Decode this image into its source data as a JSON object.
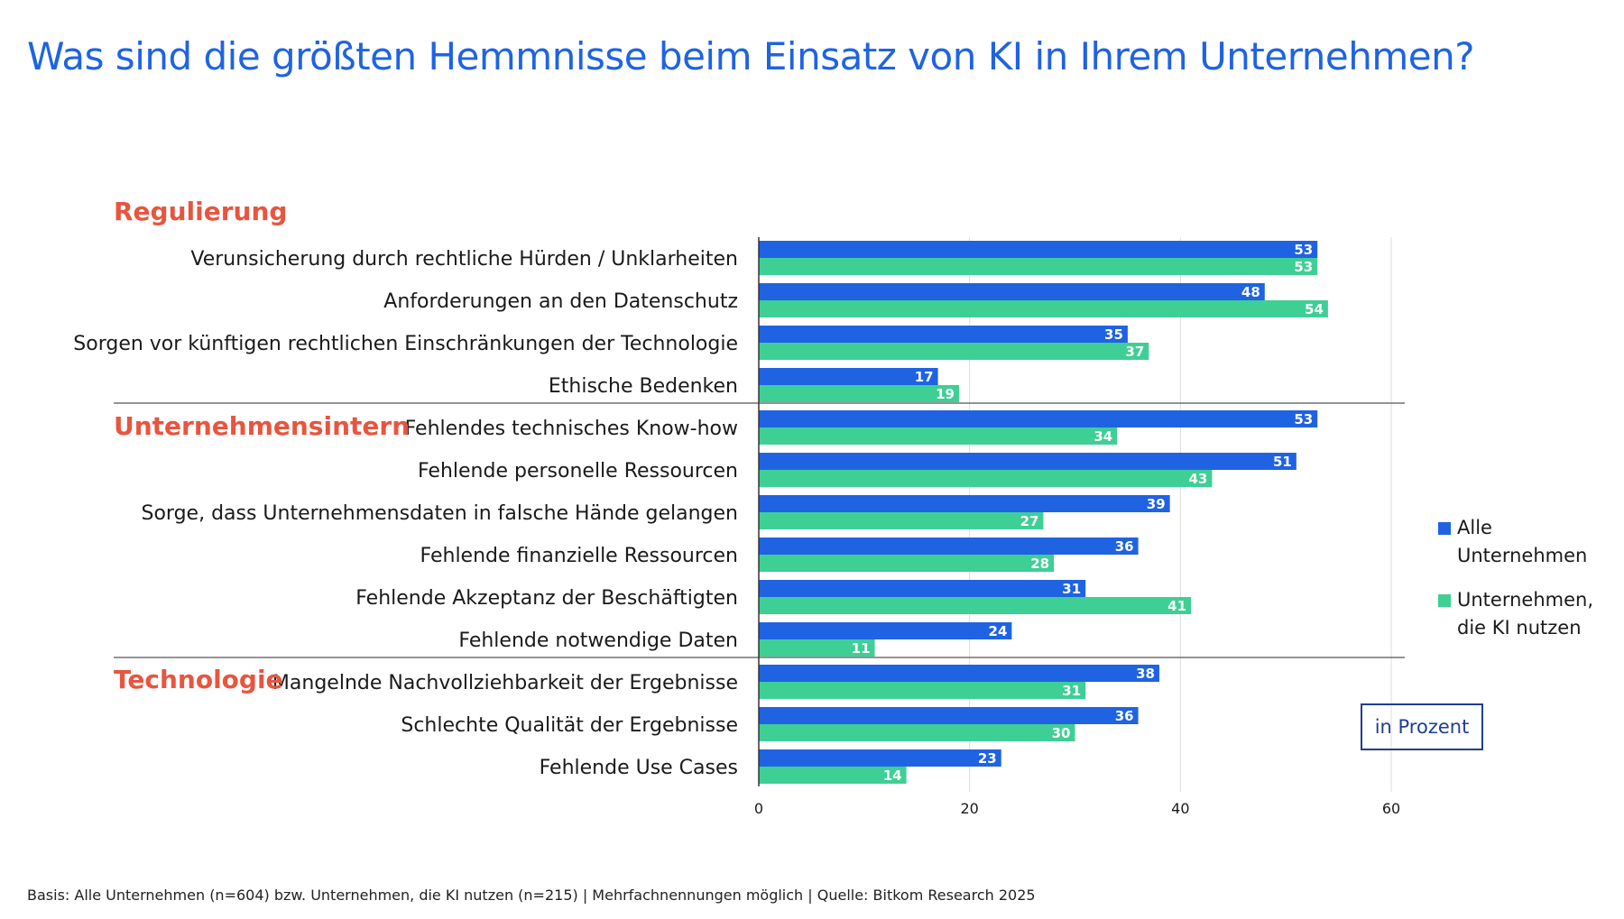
{
  "title": "Was sind die größten Hemmnisse beim Einsatz von KI in Ihrem Unternehmen?",
  "footnote": "Basis: Alle Unternehmen (n=604) bzw. Unternehmen, die KI nutzen (n=215) | Mehrfachnennungen möglich | Quelle: Bitkom Research 2025",
  "unit_label": "in Prozent",
  "colors": {
    "title": "#1f63e3",
    "series_all": "#1f63e3",
    "series_ki": "#3ecf95",
    "group": "#e8553f"
  },
  "legend": [
    {
      "label": "Alle\nUnternehmen",
      "color": "#1f63e3"
    },
    {
      "label": "Unternehmen,\ndie KI nutzen",
      "color": "#3ecf95"
    }
  ],
  "chart_data": {
    "type": "bar",
    "orientation": "horizontal",
    "xlim": [
      0,
      60
    ],
    "xticks": [
      0,
      20,
      40,
      60
    ],
    "grid": true,
    "legend_position": "right",
    "series": [
      {
        "name": "Alle Unternehmen",
        "color": "#1f63e3"
      },
      {
        "name": "Unternehmen, die KI nutzen",
        "color": "#3ecf95"
      }
    ],
    "groups": [
      {
        "name": "Regulierung",
        "items": [
          {
            "label": "Verunsicherung durch rechtliche Hürden / Unklarheiten",
            "values": [
              53,
              53
            ]
          },
          {
            "label": "Anforderungen an den Datenschutz",
            "values": [
              48,
              54
            ]
          },
          {
            "label": "Sorgen vor künftigen rechtlichen Einschränkungen der Technologie",
            "values": [
              35,
              37
            ]
          },
          {
            "label": "Ethische Bedenken",
            "values": [
              17,
              19
            ]
          }
        ]
      },
      {
        "name": "Unternehmensintern",
        "items": [
          {
            "label": "Fehlendes technisches Know-how",
            "values": [
              53,
              34
            ]
          },
          {
            "label": "Fehlende personelle Ressourcen",
            "values": [
              51,
              43
            ]
          },
          {
            "label": "Sorge, dass Unternehmensdaten in falsche Hände gelangen",
            "values": [
              39,
              27
            ]
          },
          {
            "label": "Fehlende finanzielle Ressourcen",
            "values": [
              36,
              28
            ]
          },
          {
            "label": "Fehlende Akzeptanz der Beschäftigten",
            "values": [
              31,
              41
            ]
          },
          {
            "label": "Fehlende notwendige Daten",
            "values": [
              24,
              11
            ]
          }
        ]
      },
      {
        "name": "Technologie",
        "items": [
          {
            "label": "Mangelnde Nachvollziehbarkeit der Ergebnisse",
            "values": [
              38,
              31
            ]
          },
          {
            "label": "Schlechte Qualität der Ergebnisse",
            "values": [
              36,
              30
            ]
          },
          {
            "label": "Fehlende Use Cases",
            "values": [
              23,
              14
            ]
          }
        ]
      }
    ]
  }
}
